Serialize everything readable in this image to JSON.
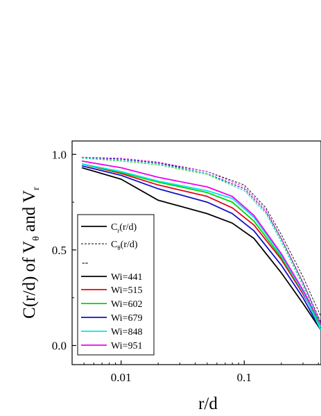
{
  "chart_data": {
    "type": "line",
    "title": "",
    "xlabel": "r/d",
    "ylabel": {
      "parts": [
        "C(r/d) of V",
        "θ",
        " and V",
        "r"
      ]
    },
    "x_scale": "log",
    "xlim": [
      0.004,
      0.42
    ],
    "ylim": [
      -0.1,
      1.07
    ],
    "x_ticks": [
      0.01,
      0.1
    ],
    "x_tick_labels": [
      "0.01",
      "0.1"
    ],
    "y_ticks": [
      0.0,
      0.5,
      1.0
    ],
    "y_tick_labels": [
      "0.0",
      "0.5",
      "1.0"
    ],
    "grid": false,
    "legend": {
      "placement": "left",
      "entries": [
        {
          "kind": "solid",
          "color": "#000000",
          "label_main": "C",
          "label_sub": "r",
          "label_rest": "(r/d)"
        },
        {
          "kind": "dashed",
          "color": "#000000",
          "label_main": "C",
          "label_sub": "θ",
          "label_rest": "(r/d)"
        },
        {
          "kind": "text",
          "label_main": "--"
        },
        {
          "kind": "solid",
          "color": "#000000",
          "label_main": "Wi=441"
        },
        {
          "kind": "solid",
          "color": "#e8001a",
          "label_main": "Wi=515"
        },
        {
          "kind": "solid",
          "color": "#00d400",
          "label_main": "Wi=602"
        },
        {
          "kind": "solid",
          "color": "#1010c8",
          "label_main": "Wi=679"
        },
        {
          "kind": "solid",
          "color": "#00e8e8",
          "label_main": "Wi=848"
        },
        {
          "kind": "solid",
          "color": "#f000f0",
          "label_main": "Wi=951"
        }
      ]
    },
    "series": [
      {
        "name": "Wi=441",
        "style": "solid",
        "color": "#000000",
        "x": [
          0.0048,
          0.01,
          0.02,
          0.05,
          0.08,
          0.12,
          0.2,
          0.3,
          0.42
        ],
        "y": [
          0.93,
          0.87,
          0.76,
          0.69,
          0.64,
          0.56,
          0.38,
          0.22,
          0.08
        ]
      },
      {
        "name": "Wi=515",
        "style": "solid",
        "color": "#e8001a",
        "x": [
          0.0048,
          0.01,
          0.02,
          0.05,
          0.08,
          0.12,
          0.2,
          0.3,
          0.42
        ],
        "y": [
          0.95,
          0.9,
          0.84,
          0.78,
          0.72,
          0.63,
          0.45,
          0.27,
          0.1
        ]
      },
      {
        "name": "Wi=602",
        "style": "solid",
        "color": "#00d400",
        "x": [
          0.0048,
          0.01,
          0.02,
          0.05,
          0.08,
          0.12,
          0.2,
          0.3,
          0.42
        ],
        "y": [
          0.95,
          0.905,
          0.855,
          0.8,
          0.75,
          0.65,
          0.46,
          0.28,
          0.1
        ]
      },
      {
        "name": "Wi=679",
        "style": "solid",
        "color": "#1010c8",
        "x": [
          0.0048,
          0.01,
          0.02,
          0.05,
          0.08,
          0.12,
          0.2,
          0.3,
          0.42
        ],
        "y": [
          0.94,
          0.89,
          0.82,
          0.75,
          0.69,
          0.6,
          0.42,
          0.25,
          0.08
        ]
      },
      {
        "name": "Wi=848",
        "style": "solid",
        "color": "#00e8e8",
        "x": [
          0.0048,
          0.01,
          0.02,
          0.05,
          0.08,
          0.12,
          0.2,
          0.3,
          0.42
        ],
        "y": [
          0.95,
          0.91,
          0.86,
          0.81,
          0.77,
          0.67,
          0.47,
          0.28,
          0.08
        ]
      },
      {
        "name": "Wi=951",
        "style": "solid",
        "color": "#f000f0",
        "x": [
          0.0048,
          0.01,
          0.02,
          0.05,
          0.08,
          0.12,
          0.2,
          0.3,
          0.42
        ],
        "y": [
          0.965,
          0.93,
          0.88,
          0.83,
          0.78,
          0.68,
          0.48,
          0.29,
          0.11
        ]
      },
      {
        "name": "C(r/d) Wi=441",
        "style": "dashed",
        "color": "#000000",
        "x": [
          0.0048,
          0.01,
          0.02,
          0.05,
          0.1,
          0.15,
          0.2,
          0.3,
          0.42
        ],
        "y": [
          0.985,
          0.975,
          0.955,
          0.91,
          0.84,
          0.72,
          0.58,
          0.36,
          0.15
        ]
      },
      {
        "name": "C(r/d) Wi=515",
        "style": "dashed",
        "color": "#e8001a",
        "x": [
          0.0048,
          0.01,
          0.02,
          0.05,
          0.1,
          0.15,
          0.2,
          0.3,
          0.42
        ],
        "y": [
          0.98,
          0.97,
          0.95,
          0.9,
          0.82,
          0.7,
          0.56,
          0.33,
          0.12
        ]
      },
      {
        "name": "C(r/d) Wi=602",
        "style": "dashed",
        "color": "#00d400",
        "x": [
          0.0048,
          0.01,
          0.02,
          0.05,
          0.1,
          0.15,
          0.2,
          0.3,
          0.42
        ],
        "y": [
          0.98,
          0.965,
          0.945,
          0.895,
          0.81,
          0.69,
          0.55,
          0.32,
          0.11
        ]
      },
      {
        "name": "C(r/d) Wi=679",
        "style": "dashed",
        "color": "#1010c8",
        "x": [
          0.0048,
          0.01,
          0.02,
          0.05,
          0.1,
          0.15,
          0.2,
          0.3,
          0.42
        ],
        "y": [
          0.985,
          0.975,
          0.955,
          0.9,
          0.82,
          0.7,
          0.56,
          0.33,
          0.12
        ]
      },
      {
        "name": "C(r/d) Wi=848",
        "style": "dashed",
        "color": "#00e8e8",
        "x": [
          0.0048,
          0.01,
          0.02,
          0.05,
          0.1,
          0.15,
          0.2,
          0.3,
          0.42
        ],
        "y": [
          0.98,
          0.97,
          0.95,
          0.9,
          0.81,
          0.69,
          0.54,
          0.31,
          0.1
        ]
      },
      {
        "name": "C(r/d) Wi=951",
        "style": "dashed",
        "color": "#f000f0",
        "x": [
          0.0048,
          0.01,
          0.02,
          0.05,
          0.1,
          0.15,
          0.2,
          0.3,
          0.42
        ],
        "y": [
          0.985,
          0.98,
          0.96,
          0.91,
          0.83,
          0.71,
          0.56,
          0.33,
          0.11
        ]
      }
    ]
  }
}
